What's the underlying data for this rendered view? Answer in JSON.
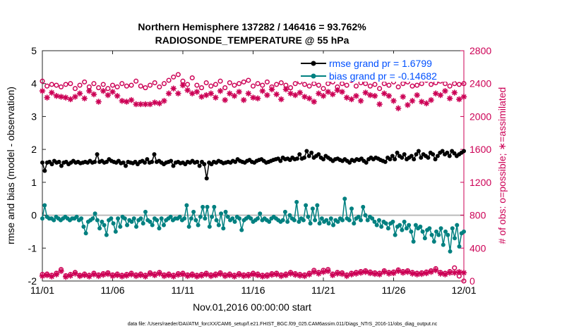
{
  "chart_data": {
    "type": "line",
    "title_line1": "Northern Hemisphere 137282 / 146416 = 93.762%",
    "title_line2": "RADIOSONDE_TEMPERATURE @ 55 hPa",
    "xlabel": "Nov.01,2016 00:00:00 start",
    "ylabel_left": "rmse and bias (model - observation)",
    "ylabel_right": "# of obs: o=possible; ∗=assimilated",
    "footer": "data file: /Users/raeder/DAI/ATM_forcXX/CAM6_setup/f.e21.FHIST_BGC.f09_025.CAM6assim.011/Diags_NTrS_2016-11/obs_diag_output.nc",
    "x_ticks": [
      "11/01",
      "11/06",
      "11/11",
      "11/16",
      "11/21",
      "11/26",
      "12/01"
    ],
    "xlim": [
      0,
      30
    ],
    "ylim_left": [
      -2,
      5
    ],
    "ylim_right": [
      0,
      2800
    ],
    "left_ticks": [
      "-2",
      "-1",
      "0",
      "1",
      "2",
      "3",
      "4",
      "5"
    ],
    "right_ticks": [
      "0",
      "400",
      "800",
      "1200",
      "1600",
      "2000",
      "2400",
      "2800"
    ],
    "legend": [
      "rmse grand pr = 1.6799",
      "bias grand pr = -0.14682"
    ],
    "colors": {
      "rmse": "#000000",
      "bias": "#008080",
      "obs": "#cc0055",
      "zero_line": "#bbbbbb",
      "right_axis": "#cc0055"
    },
    "series": [
      {
        "name": "rmse",
        "axis": "left",
        "values": [
          1.6,
          1.35,
          1.6,
          1.62,
          1.55,
          1.65,
          1.6,
          1.62,
          1.5,
          1.6,
          1.62,
          1.55,
          1.6,
          1.65,
          1.6,
          1.62,
          1.58,
          1.6,
          1.62,
          1.6,
          1.65,
          1.6,
          1.62,
          1.85,
          1.62,
          1.65,
          1.6,
          1.62,
          1.7,
          1.65,
          1.62,
          1.6,
          1.65,
          1.58,
          1.6,
          1.5,
          1.62,
          1.6,
          1.58,
          1.62,
          1.55,
          1.62,
          1.65,
          1.6,
          1.7,
          1.6,
          1.62,
          1.85,
          1.62,
          1.65,
          1.6,
          1.55,
          1.6,
          1.62,
          1.65,
          1.5,
          1.6,
          1.62,
          1.58,
          1.6,
          1.55,
          1.62,
          1.6,
          1.65,
          1.6,
          1.62,
          1.5,
          1.62,
          1.55,
          1.12,
          1.6,
          1.55,
          1.62,
          1.6,
          1.65,
          1.62,
          1.58,
          1.6,
          1.62,
          1.6,
          1.65,
          1.62,
          1.7,
          1.65,
          1.62,
          1.6,
          1.65,
          1.68,
          1.62,
          1.6,
          1.65,
          1.68,
          1.7,
          1.65,
          1.6,
          1.62,
          1.65,
          1.68,
          1.7,
          1.72,
          1.65,
          1.75,
          1.7,
          1.72,
          1.68,
          1.75,
          1.7,
          1.72,
          1.85,
          1.72,
          1.75,
          1.95,
          1.8,
          1.9,
          1.75,
          1.8,
          1.85,
          1.75,
          1.7,
          1.8,
          1.75,
          1.7,
          1.65,
          1.7,
          1.72,
          1.68,
          1.65,
          1.7,
          1.65,
          1.6,
          1.68,
          1.65,
          1.7,
          1.68,
          1.72,
          1.65,
          1.6,
          1.7,
          1.75,
          1.7,
          1.75,
          1.72,
          1.68,
          1.65,
          1.62,
          1.75,
          1.7,
          1.8,
          1.7,
          1.9,
          1.8,
          1.75,
          1.85,
          1.7,
          1.75,
          1.8,
          1.7,
          1.85,
          1.95,
          1.75,
          1.85,
          1.8,
          1.75,
          1.9,
          1.85,
          1.7,
          1.8,
          1.9,
          1.95,
          1.85,
          1.9,
          1.8,
          1.95,
          1.88,
          1.8,
          1.85,
          1.9,
          1.95
        ]
      },
      {
        "name": "bias",
        "axis": "left",
        "values": [
          -0.1,
          0.3,
          -0.05,
          -0.1,
          -0.1,
          -0.15,
          -0.05,
          -0.1,
          -0.15,
          -0.1,
          -0.05,
          -0.1,
          -0.15,
          -0.1,
          -0.1,
          -0.05,
          -0.15,
          -0.1,
          -0.35,
          -0.55,
          -0.2,
          -0.15,
          -0.1,
          0.05,
          -0.15,
          -0.4,
          -0.2,
          -0.3,
          -0.6,
          -0.15,
          -0.1,
          -0.25,
          -0.5,
          -0.1,
          -0.35,
          -0.05,
          -0.1,
          -0.3,
          -0.15,
          -0.2,
          -0.1,
          -0.35,
          -0.15,
          -0.1,
          -0.25,
          0.1,
          -0.15,
          -0.2,
          -0.3,
          -0.1,
          -0.15,
          -0.4,
          -0.1,
          -0.3,
          -0.15,
          -0.1,
          -0.05,
          -0.15,
          -0.1,
          -0.1,
          -0.05,
          -0.15,
          -0.1,
          0.3,
          -0.35,
          -0.1,
          0.1,
          -0.15,
          -0.3,
          -0.05,
          0.25,
          -0.1,
          0.25,
          -0.35,
          -0.05,
          0.25,
          -0.15,
          -0.3,
          0.05,
          -0.4,
          0.1,
          -0.05,
          -0.15,
          -0.1,
          -0.2,
          -0.05,
          -0.1,
          -0.45,
          -0.15,
          -0.1,
          -0.05,
          -0.1,
          -0.2,
          -0.15,
          -0.1,
          0.05,
          -0.15,
          -0.1,
          -0.15,
          -0.2,
          -0.1,
          -0.05,
          -0.1,
          -0.15,
          -0.2,
          -0.15,
          0.1,
          -0.2,
          0.0,
          -0.1,
          -0.15,
          0.4,
          -0.2,
          -0.1,
          -0.15,
          0.3,
          -0.05,
          -0.25,
          0.2,
          -0.15,
          0.3,
          -0.25,
          -0.1,
          -0.2,
          -0.15,
          -0.25,
          -0.1,
          -0.3,
          -0.15,
          -0.2,
          -0.1,
          -0.15,
          0.5,
          -0.1,
          -0.15,
          0.2,
          -0.25,
          -0.1,
          -0.05,
          -0.15,
          0.25,
          0.0,
          -0.15,
          -0.05,
          -0.1,
          -0.2,
          -0.3,
          -0.15,
          -0.35,
          -0.2,
          -0.25,
          -0.4,
          -0.25,
          -0.2,
          -0.6,
          -0.35,
          -0.3,
          -0.45,
          -0.2,
          -0.4,
          -0.3,
          -0.5,
          -0.8,
          -0.3,
          -0.4,
          -0.35,
          -0.5,
          -0.7,
          -0.45,
          -0.4,
          -0.6,
          -0.8,
          -0.5,
          -0.6,
          -0.4,
          -0.9,
          -0.5,
          -0.6,
          -1.1,
          -0.4,
          -0.7,
          -0.3,
          -0.95,
          -0.55,
          -0.5
        ]
      },
      {
        "name": "possible",
        "axis": "right",
        "values": [
          2430,
          2370,
          2390,
          2380,
          2360,
          2390,
          2400,
          2340,
          2380,
          2420,
          2360,
          2400,
          2350,
          2390,
          2340,
          2380,
          2360,
          2400,
          2370,
          2380,
          2430,
          2370,
          2350,
          2380,
          2410,
          2360,
          2400,
          2440,
          2480,
          2510,
          2430,
          2390,
          2470,
          2380,
          2350,
          2410,
          2370,
          2390,
          2430,
          2350,
          2410,
          2380,
          2400,
          2420,
          2440,
          2370,
          2400,
          2380,
          2420,
          2360,
          2390,
          2410,
          2380,
          2350,
          2400,
          2420,
          2390,
          2370,
          2400,
          2380,
          2340,
          2400,
          2420,
          2360,
          2400,
          2380,
          2440,
          2370,
          2410,
          2400,
          2370,
          2390,
          2340,
          2400,
          2380,
          2420,
          2360,
          2400,
          2420,
          2370,
          2380,
          2400,
          2440,
          2390,
          2410,
          2430,
          2400,
          2370,
          2400,
          2390,
          2400
        ]
      },
      {
        "name": "assimilated",
        "axis": "right",
        "values": [
          2310,
          2230,
          2290,
          2250,
          2240,
          2230,
          2210,
          2240,
          2280,
          2220,
          2310,
          2270,
          2180,
          2310,
          2260,
          2300,
          2250,
          2190,
          2180,
          2200,
          2150,
          2150,
          2150,
          2150,
          2170,
          2160,
          2190,
          2280,
          2340,
          2280,
          2380,
          2320,
          2280,
          2300,
          2240,
          2260,
          2280,
          2230,
          2310,
          2200,
          2280,
          2250,
          2300,
          2200,
          2280,
          2230,
          2220,
          2310,
          2260,
          2330,
          2270,
          2210,
          2330,
          2280,
          2260,
          2290,
          2240,
          2220,
          2180,
          2280,
          2250,
          2300,
          2270,
          2320,
          2300,
          2230,
          2210,
          2250,
          2190,
          2290,
          2260,
          2250,
          2150,
          2280,
          2250,
          2190,
          2100,
          2240,
          2140,
          2190,
          2260,
          2180,
          2160,
          2200,
          2280,
          2260,
          2310,
          2220,
          2290,
          2210,
          2240
        ]
      },
      {
        "name": "assimilated_low",
        "axis": "right",
        "values": [
          60,
          70,
          55,
          80,
          120,
          50,
          65,
          90,
          60,
          70,
          55,
          80,
          60,
          75,
          85,
          60,
          70,
          55,
          65,
          80,
          60,
          70,
          55,
          85,
          70,
          90,
          60,
          70,
          55,
          75,
          80,
          60,
          70,
          55,
          65,
          80,
          60,
          70,
          85,
          60,
          70,
          55,
          75,
          60,
          65,
          80,
          70,
          55,
          60,
          75,
          80,
          60,
          70,
          90,
          75,
          65,
          60,
          80,
          110,
          90,
          110,
          120,
          70,
          90,
          85,
          60,
          80,
          90,
          100,
          110,
          95,
          85,
          80,
          110,
          90,
          95,
          120,
          100,
          110,
          90,
          80,
          85,
          95,
          110,
          130,
          90,
          80,
          100,
          100,
          110,
          100
        ]
      },
      {
        "name": "possible_low",
        "axis": "right",
        "values": [
          80,
          85,
          70,
          95,
          140,
          65,
          80,
          105,
          70,
          85,
          70,
          95,
          75,
          90,
          100,
          75,
          85,
          70,
          80,
          95,
          75,
          85,
          70,
          100,
          85,
          105,
          75,
          85,
          70,
          90,
          95,
          75,
          85,
          70,
          80,
          95,
          75,
          85,
          100,
          75,
          85,
          70,
          90,
          75,
          80,
          95,
          85,
          70,
          75,
          90,
          95,
          75,
          85,
          105,
          90,
          80,
          75,
          95,
          130,
          105,
          130,
          140,
          85,
          105,
          100,
          75,
          95,
          105,
          115,
          125,
          110,
          100,
          95,
          125,
          105,
          110,
          135,
          115,
          125,
          105,
          95,
          100,
          110,
          125,
          150,
          105,
          95,
          115,
          160,
          60,
          0
        ]
      }
    ]
  }
}
